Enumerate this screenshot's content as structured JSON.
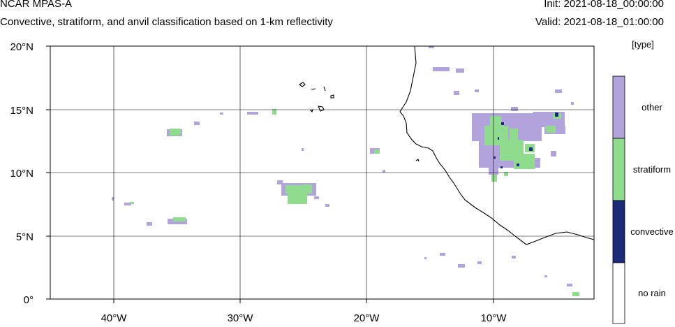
{
  "header": {
    "title": "NCAR MPAS-A",
    "subtitle": "Convective, stratiform, and anvil classification based on 1-km reflectivity",
    "init": "Init: 2021-08-18_00:00:00",
    "valid": "Valid: 2021-08-18_01:00:00"
  },
  "axes": {
    "lat_labels": [
      "20°N",
      "15°N",
      "10°N",
      "5°N",
      "0°"
    ],
    "lon_labels": [
      "40°W",
      "30°W",
      "20°W",
      "10°W"
    ]
  },
  "colorbar": {
    "unit": "[type]",
    "categories": [
      {
        "label": "other",
        "color": "#b3a3dc"
      },
      {
        "label": "stratiform",
        "color": "#8fdc8f"
      },
      {
        "label": "convective",
        "color": "#1c2a7a"
      },
      {
        "label": "no rain",
        "color": "#ffffff"
      }
    ]
  },
  "colors": {
    "other": "#b3a3dc",
    "stratiform": "#8fdc8f",
    "convective": "#1c2a7a",
    "coast": "#000000",
    "grid": "#000000"
  }
}
